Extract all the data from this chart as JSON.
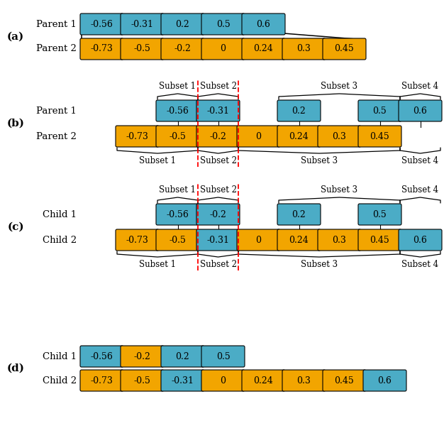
{
  "blue_color": "#4BACC6",
  "orange_color": "#F2A500",
  "panel_a": {
    "parent1": [
      -0.56,
      -0.31,
      0.2,
      0.5,
      0.6
    ],
    "parent2": [
      -0.73,
      -0.5,
      -0.2,
      0,
      0.24,
      0.3,
      0.45
    ]
  },
  "panel_b": {
    "parent1_vals": [
      -0.56,
      -0.31,
      0.2,
      0.5,
      0.6
    ],
    "parent1_cols": [
      1,
      2,
      4,
      6,
      7
    ],
    "parent2_vals": [
      -0.73,
      -0.5,
      -0.2,
      0,
      0.24,
      0.3,
      0.45
    ],
    "red_dash_cols": [
      2,
      3
    ]
  },
  "panel_c": {
    "child1_vals": [
      -0.56,
      -0.2,
      0.2,
      0.5
    ],
    "child1_cols": [
      1,
      2,
      4,
      6
    ],
    "child2_vals": [
      -0.73,
      -0.5,
      -0.31,
      0,
      0.24,
      0.3,
      0.45,
      0.6
    ],
    "child2_colors": [
      "O",
      "O",
      "B",
      "O",
      "O",
      "O",
      "O",
      "B"
    ],
    "red_dash_cols": [
      2,
      3
    ]
  },
  "panel_d": {
    "child1_vals": [
      -0.56,
      -0.2,
      0.2,
      0.5
    ],
    "child1_colors": [
      "B",
      "O",
      "B",
      "B"
    ],
    "child2_vals": [
      -0.73,
      -0.5,
      -0.31,
      0,
      0.24,
      0.3,
      0.45,
      0.6
    ],
    "child2_colors": [
      "O",
      "O",
      "B",
      "O",
      "O",
      "O",
      "O",
      "B"
    ]
  },
  "subset_labels": [
    "Subset 1",
    "Subset 2",
    "Subset 3",
    "Subset 4"
  ]
}
